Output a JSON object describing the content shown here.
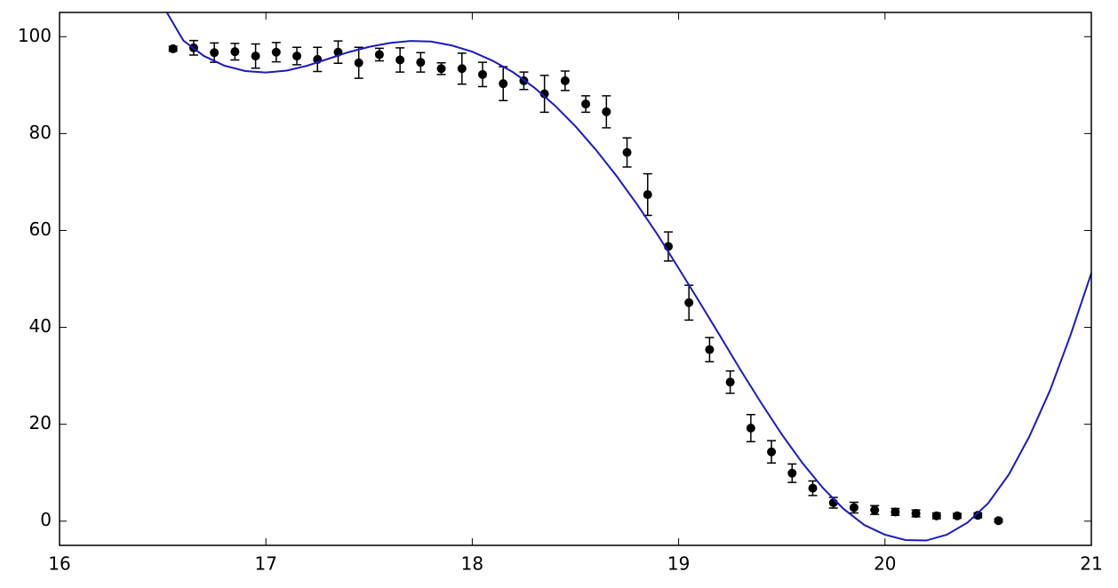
{
  "chart_data": {
    "type": "scatter",
    "xlim": [
      16,
      21
    ],
    "ylim": [
      -5,
      105
    ],
    "xticks": [
      16,
      17,
      18,
      19,
      20,
      21
    ],
    "yticks": [
      0,
      20,
      40,
      60,
      80,
      100
    ],
    "series": [
      {
        "type": "scatter",
        "color": "#000000",
        "x": [
          16.55,
          16.65,
          16.75,
          16.85,
          16.95,
          17.05,
          17.15,
          17.25,
          17.35,
          17.45,
          17.55,
          17.65,
          17.75,
          17.85,
          17.95,
          18.05,
          18.15,
          18.25,
          18.35,
          18.45,
          18.55,
          18.65,
          18.75,
          18.85,
          18.95,
          19.05,
          19.15,
          19.25,
          19.35,
          19.45,
          19.55,
          19.65,
          19.75,
          19.85,
          19.95,
          20.05,
          20.15,
          20.25,
          20.35,
          20.45,
          20.55
        ],
        "values": [
          97.5,
          97.7,
          96.7,
          96.9,
          96.0,
          96.8,
          96.0,
          95.3,
          96.8,
          94.6,
          96.3,
          95.2,
          94.7,
          93.4,
          93.4,
          92.2,
          90.3,
          90.9,
          88.2,
          90.9,
          86.1,
          84.5,
          76.1,
          67.4,
          56.7,
          45.1,
          35.4,
          28.7,
          19.2,
          14.3,
          9.9,
          6.8,
          3.8,
          2.8,
          2.3,
          1.9,
          1.6,
          1.1,
          1.1,
          1.2,
          0.1
        ],
        "errors": [
          0.5,
          1.5,
          2,
          1.7,
          2.5,
          2,
          1.8,
          2.5,
          2.3,
          3.2,
          1.3,
          2.5,
          2,
          1.2,
          3.2,
          2.5,
          3.5,
          1.8,
          3.8,
          2,
          1.7,
          3.3,
          3,
          4.3,
          3,
          3.6,
          2.5,
          2.3,
          2.8,
          2.3,
          1.9,
          1.5,
          1.1,
          1.1,
          0.9,
          0.7,
          0.7,
          0.6,
          0.5,
          0.5,
          0.3
        ]
      },
      {
        "type": "line",
        "color": "#1a1ac8",
        "x": [
          16.52,
          16.6,
          16.7,
          16.8,
          16.9,
          17.0,
          17.1,
          17.2,
          17.3,
          17.4,
          17.5,
          17.6,
          17.7,
          17.8,
          17.9,
          18.0,
          18.1,
          18.2,
          18.3,
          18.4,
          18.5,
          18.6,
          18.7,
          18.8,
          18.9,
          19.0,
          19.1,
          19.2,
          19.3,
          19.4,
          19.5,
          19.6,
          19.7,
          19.8,
          19.9,
          20.0,
          20.1,
          20.2,
          20.3,
          20.4,
          20.5,
          20.6,
          20.7,
          20.8,
          20.9,
          21.0
        ],
        "values": [
          105,
          99.2,
          96.0,
          94.0,
          92.9,
          92.6,
          93.0,
          94.0,
          95.4,
          96.8,
          97.9,
          98.7,
          99.1,
          99.0,
          98.2,
          96.9,
          95.0,
          92.6,
          89.5,
          85.8,
          81.5,
          76.6,
          71.2,
          65.3,
          59.0,
          52.2,
          45.3,
          38.3,
          31.2,
          24.4,
          17.9,
          12.0,
          6.8,
          2.5,
          -0.8,
          -2.8,
          -3.9,
          -4.0,
          -2.8,
          -0.3,
          3.7,
          9.6,
          17.5,
          27.0,
          38.5,
          51.2
        ]
      }
    ]
  }
}
